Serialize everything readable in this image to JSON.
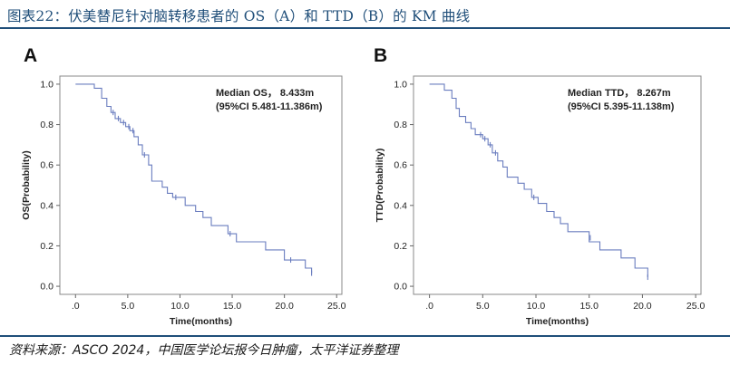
{
  "title": "图表22：伏美替尼针对脑转移患者的 OS（A）和 TTD（B）的 KM 曲线",
  "source": "资料来源：ASCO 2024，中国医学论坛报今日肿瘤，太平洋证券整理",
  "colors": {
    "title": "#1f4e79",
    "curve": "#6a7dbf",
    "frame": "#888888"
  },
  "chart_data": [
    {
      "type": "line",
      "panel": "A",
      "xlabel": "Time(months)",
      "ylabel": "OS(Probability)",
      "xlim": [
        -1.5,
        25.5
      ],
      "ylim": [
        -0.04,
        1.04
      ],
      "xticks": [
        0,
        5,
        10,
        15,
        20,
        25
      ],
      "xtick_labels": [
        ".0",
        "5.0",
        "10.0",
        "15.0",
        "20.0",
        "25.0"
      ],
      "yticks": [
        0,
        0.2,
        0.4,
        0.6,
        0.8,
        1.0
      ],
      "ytick_labels": [
        "0.0",
        "0.2",
        "0.4",
        "0.6",
        "0.8",
        "1.0"
      ],
      "annotation": [
        "Median OS， 8.433m",
        "(95%CI 5.481-11.386m)"
      ],
      "steps": [
        [
          0.0,
          1.0
        ],
        [
          1.8,
          0.98
        ],
        [
          2.5,
          0.93
        ],
        [
          3.0,
          0.89
        ],
        [
          3.4,
          0.86
        ],
        [
          3.8,
          0.83
        ],
        [
          4.3,
          0.81
        ],
        [
          4.8,
          0.79
        ],
        [
          5.2,
          0.77
        ],
        [
          5.6,
          0.74
        ],
        [
          6.0,
          0.7
        ],
        [
          6.4,
          0.65
        ],
        [
          7.0,
          0.6
        ],
        [
          7.3,
          0.52
        ],
        [
          8.3,
          0.49
        ],
        [
          8.8,
          0.46
        ],
        [
          9.3,
          0.44
        ],
        [
          10.5,
          0.4
        ],
        [
          11.5,
          0.37
        ],
        [
          12.2,
          0.34
        ],
        [
          13.0,
          0.3
        ],
        [
          14.6,
          0.26
        ],
        [
          15.4,
          0.22
        ],
        [
          18.2,
          0.18
        ],
        [
          20.0,
          0.13
        ],
        [
          22.0,
          0.09
        ],
        [
          22.6,
          0.065
        ]
      ],
      "censored": [
        [
          3.6,
          0.86
        ],
        [
          4.1,
          0.83
        ],
        [
          4.6,
          0.81
        ],
        [
          5.1,
          0.79
        ],
        [
          5.5,
          0.77
        ],
        [
          6.6,
          0.65
        ],
        [
          9.6,
          0.44
        ],
        [
          14.8,
          0.26
        ],
        [
          20.6,
          0.13
        ],
        [
          22.6,
          0.065
        ]
      ]
    },
    {
      "type": "line",
      "panel": "B",
      "xlabel": "Time(months)",
      "ylabel": "TTD(Probability)",
      "xlim": [
        -1.5,
        25.5
      ],
      "ylim": [
        -0.04,
        1.04
      ],
      "xticks": [
        0,
        5,
        10,
        15,
        20,
        25
      ],
      "xtick_labels": [
        ".0",
        "5.0",
        "10.0",
        "15.0",
        "20.0",
        "25.0"
      ],
      "yticks": [
        0,
        0.2,
        0.4,
        0.6,
        0.8,
        1.0
      ],
      "ytick_labels": [
        "0.0",
        "0.2",
        "0.4",
        "0.6",
        "0.8",
        "1.0"
      ],
      "annotation": [
        "Median TTD， 8.267m",
        "(95%CI 5.395-11.138m)"
      ],
      "steps": [
        [
          0.0,
          1.0
        ],
        [
          1.4,
          0.97
        ],
        [
          2.1,
          0.93
        ],
        [
          2.5,
          0.88
        ],
        [
          2.8,
          0.84
        ],
        [
          3.4,
          0.81
        ],
        [
          3.9,
          0.78
        ],
        [
          4.3,
          0.75
        ],
        [
          5.0,
          0.73
        ],
        [
          5.5,
          0.7
        ],
        [
          5.9,
          0.66
        ],
        [
          6.4,
          0.62
        ],
        [
          6.9,
          0.59
        ],
        [
          7.3,
          0.54
        ],
        [
          8.3,
          0.51
        ],
        [
          8.9,
          0.48
        ],
        [
          9.6,
          0.44
        ],
        [
          10.2,
          0.41
        ],
        [
          11.0,
          0.37
        ],
        [
          11.7,
          0.34
        ],
        [
          12.3,
          0.31
        ],
        [
          13.0,
          0.27
        ],
        [
          15.0,
          0.22
        ],
        [
          16.0,
          0.18
        ],
        [
          18.0,
          0.14
        ],
        [
          19.3,
          0.09
        ],
        [
          20.5,
          0.045
        ]
      ],
      "censored": [
        [
          4.8,
          0.75
        ],
        [
          5.2,
          0.73
        ],
        [
          5.7,
          0.7
        ],
        [
          6.2,
          0.66
        ],
        [
          9.8,
          0.44
        ],
        [
          15.1,
          0.24
        ],
        [
          20.5,
          0.045
        ]
      ]
    }
  ]
}
